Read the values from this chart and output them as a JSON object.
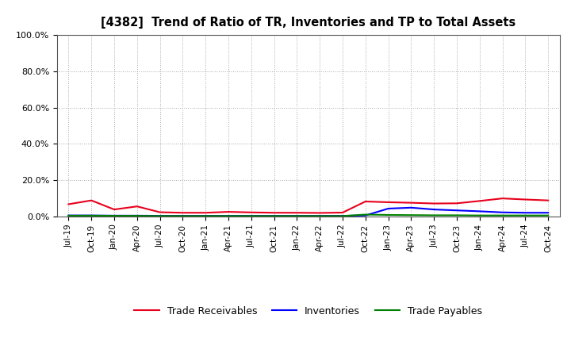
{
  "title": "[4382]  Trend of Ratio of TR, Inventories and TP to Total Assets",
  "x_labels": [
    "Jul-19",
    "Oct-19",
    "Jan-20",
    "Apr-20",
    "Jul-20",
    "Oct-20",
    "Jan-21",
    "Apr-21",
    "Jul-21",
    "Oct-21",
    "Jan-22",
    "Apr-22",
    "Jul-22",
    "Oct-22",
    "Jan-23",
    "Apr-23",
    "Jul-23",
    "Oct-23",
    "Jan-24",
    "Apr-24",
    "Jul-24",
    "Oct-24"
  ],
  "trade_receivables": [
    0.067,
    0.088,
    0.038,
    0.055,
    0.023,
    0.02,
    0.02,
    0.025,
    0.022,
    0.02,
    0.02,
    0.019,
    0.021,
    0.082,
    0.078,
    0.075,
    0.071,
    0.072,
    0.085,
    0.099,
    0.093,
    0.088
  ],
  "inventories": [
    0.005,
    0.005,
    0.004,
    0.004,
    0.003,
    0.003,
    0.003,
    0.003,
    0.003,
    0.003,
    0.003,
    0.003,
    0.003,
    0.005,
    0.043,
    0.048,
    0.038,
    0.033,
    0.028,
    0.022,
    0.02,
    0.02
  ],
  "trade_payables": [
    0.004,
    0.004,
    0.003,
    0.003,
    0.002,
    0.002,
    0.002,
    0.002,
    0.002,
    0.002,
    0.002,
    0.002,
    0.002,
    0.01,
    0.008,
    0.007,
    0.006,
    0.006,
    0.005,
    0.005,
    0.005,
    0.005
  ],
  "tr_color": "#e8001c",
  "inv_color": "#0000ff",
  "tp_color": "#008000",
  "bg_color": "#ffffff",
  "grid_color": "#aaaaaa",
  "ylim": [
    0.0,
    1.0
  ],
  "yticks": [
    0.0,
    0.2,
    0.4,
    0.6,
    0.8,
    1.0
  ],
  "legend_labels": [
    "Trade Receivables",
    "Inventories",
    "Trade Payables"
  ]
}
